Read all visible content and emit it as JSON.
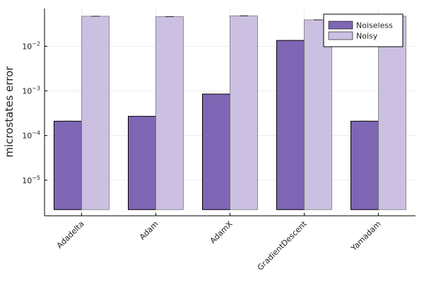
{
  "chart_data": {
    "type": "bar",
    "title": "",
    "xlabel": "",
    "ylabel": "microstates error",
    "yscale": "log",
    "ylim": [
      1.6e-06,
      0.07
    ],
    "yticks": [
      {
        "value": 1e-05,
        "base": "10",
        "exp": "−5"
      },
      {
        "value": 0.0001,
        "base": "10",
        "exp": "−4"
      },
      {
        "value": 0.001,
        "base": "10",
        "exp": "−3"
      },
      {
        "value": 0.01,
        "base": "10",
        "exp": "−2"
      }
    ],
    "categories": [
      "Adadelta",
      "Adam",
      "AdamX",
      "GradientDescent",
      "Yamadam"
    ],
    "series": [
      {
        "name": "Noiseless",
        "color": "#7f66b4",
        "values": [
          0.00021,
          0.00027,
          0.00085,
          0.0135,
          0.00021
        ]
      },
      {
        "name": "Noisy",
        "color": "#cbc0e2",
        "values": [
          0.047,
          0.046,
          0.048,
          0.039,
          0.047
        ]
      }
    ],
    "bar_baseline": 2.2e-06,
    "grid": true,
    "legend": "top-right"
  }
}
